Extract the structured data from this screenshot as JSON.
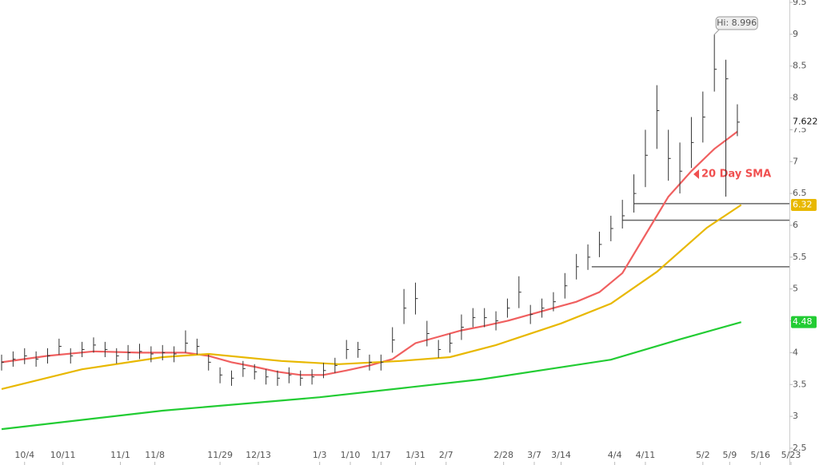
{
  "chart_data": {
    "type": "ohlc",
    "x": [
      0,
      3,
      6,
      9,
      12,
      15,
      18,
      21,
      24,
      27,
      30,
      33,
      36,
      39,
      42,
      45,
      48,
      51,
      54,
      57,
      60,
      63,
      66,
      69,
      72,
      75,
      78,
      81,
      84,
      87,
      90,
      93,
      96,
      99,
      102,
      105,
      108,
      111,
      114,
      117,
      120,
      123,
      126,
      129,
      132,
      135,
      138,
      141,
      144,
      147,
      150,
      153,
      156,
      159,
      162,
      165,
      168,
      171,
      174,
      177,
      180,
      183,
      186,
      189,
      192
    ],
    "high": [
      3.97,
      4.02,
      4.07,
      4.02,
      4.07,
      4.22,
      4.07,
      4.17,
      4.24,
      4.17,
      4.07,
      4.12,
      4.14,
      4.1,
      4.12,
      4.1,
      4.35,
      4.22,
      3.97,
      3.77,
      3.72,
      3.87,
      3.82,
      3.74,
      3.72,
      3.77,
      3.72,
      3.74,
      3.84,
      3.92,
      4.2,
      4.17,
      3.97,
      3.97,
      4.4,
      5.0,
      5.1,
      4.5,
      4.2,
      4.3,
      4.6,
      4.7,
      4.7,
      4.65,
      4.85,
      5.2,
      4.75,
      4.85,
      4.95,
      5.25,
      5.55,
      5.7,
      5.9,
      6.15,
      6.4,
      6.8,
      7.5,
      8.2,
      7.5,
      7.3,
      7.7,
      8.1,
      8.996,
      8.6,
      7.9
    ],
    "low": [
      3.72,
      3.78,
      3.82,
      3.78,
      3.83,
      3.97,
      3.83,
      3.93,
      4.0,
      3.93,
      3.83,
      3.88,
      3.9,
      3.85,
      3.88,
      3.85,
      4.0,
      3.97,
      3.72,
      3.52,
      3.48,
      3.62,
      3.58,
      3.5,
      3.48,
      3.52,
      3.48,
      3.5,
      3.6,
      3.68,
      3.9,
      3.92,
      3.72,
      3.72,
      4.0,
      4.45,
      4.6,
      4.1,
      3.92,
      4.0,
      4.2,
      4.4,
      4.4,
      4.35,
      4.55,
      4.7,
      4.45,
      4.55,
      4.65,
      4.85,
      5.15,
      5.3,
      5.5,
      5.75,
      5.95,
      6.2,
      6.6,
      7.2,
      6.7,
      6.5,
      6.9,
      7.3,
      8.1,
      6.45,
      7.4
    ],
    "close": [
      3.85,
      3.9,
      3.95,
      3.9,
      3.95,
      4.1,
      3.95,
      4.05,
      4.12,
      4.05,
      3.95,
      4.0,
      4.02,
      3.98,
      4.0,
      3.98,
      4.15,
      4.1,
      3.85,
      3.65,
      3.6,
      3.75,
      3.7,
      3.62,
      3.6,
      3.65,
      3.6,
      3.62,
      3.72,
      3.8,
      4.05,
      4.05,
      3.85,
      3.85,
      4.2,
      4.7,
      4.85,
      4.3,
      4.05,
      4.15,
      4.4,
      4.55,
      4.55,
      4.5,
      4.7,
      4.95,
      4.6,
      4.7,
      4.8,
      5.05,
      5.35,
      5.5,
      5.7,
      5.95,
      6.15,
      6.5,
      7.1,
      7.8,
      7.05,
      6.85,
      7.3,
      7.7,
      8.45,
      8.3,
      7.62
    ],
    "bar_color": "#333333",
    "overlays": [
      {
        "color": "#f06060",
        "x": [
          0,
          12,
          24,
          36,
          48,
          54,
          60,
          66,
          72,
          78,
          84,
          90,
          96,
          102,
          108,
          114,
          120,
          126,
          132,
          138,
          144,
          150,
          156,
          162,
          168,
          174,
          180,
          186,
          192
        ],
        "values": [
          3.85,
          3.95,
          4.02,
          4.0,
          4.0,
          3.95,
          3.85,
          3.78,
          3.7,
          3.65,
          3.65,
          3.72,
          3.8,
          3.9,
          4.15,
          4.25,
          4.35,
          4.42,
          4.5,
          4.6,
          4.7,
          4.8,
          4.95,
          5.25,
          5.85,
          6.45,
          6.85,
          7.2,
          7.47
        ]
      },
      {
        "color": "#e8b800",
        "x": [
          0,
          21,
          42,
          54,
          73,
          88,
          104,
          117,
          129,
          146,
          159,
          171,
          184,
          193
        ],
        "values": [
          3.43,
          3.74,
          3.93,
          3.98,
          3.87,
          3.82,
          3.87,
          3.93,
          4.12,
          4.46,
          4.77,
          5.27,
          5.96,
          6.32
        ],
        "last_label": {
          "value": 6.32,
          "label": "6.32"
        }
      },
      {
        "color": "#22cc33",
        "x": [
          0,
          42,
          83,
          125,
          159,
          177,
          193
        ],
        "values": [
          2.8,
          3.09,
          3.3,
          3.58,
          3.89,
          4.21,
          4.48
        ],
        "last_label": {
          "value": 4.48,
          "label": "4.48"
        }
      }
    ],
    "levels": [
      {
        "value": 6.34,
        "from": 165
      },
      {
        "value": 6.08,
        "from": 162
      },
      {
        "value": 5.35,
        "from": 154
      }
    ],
    "price_label": {
      "value": 7.622,
      "label": "7.622"
    },
    "hi_label": {
      "value": 8.996,
      "x": 186,
      "label": "Hi: 8.996"
    },
    "annotation": "20 Day SMA",
    "ylim": [
      2.5,
      9.5
    ],
    "yticks": [
      2.5,
      3,
      3.5,
      4,
      4.5,
      5,
      5.5,
      6,
      6.5,
      7,
      7.5,
      8,
      8.5,
      9,
      9.5
    ],
    "xlim": [
      0,
      206
    ],
    "xticks": [
      {
        "value": 6,
        "label": "10/4"
      },
      {
        "value": 16,
        "label": "10/11"
      },
      {
        "value": 31,
        "label": "11/1"
      },
      {
        "value": 40,
        "label": "11/8"
      },
      {
        "value": 57,
        "label": "11/29"
      },
      {
        "value": 67,
        "label": "12/13"
      },
      {
        "value": 83,
        "label": "1/3"
      },
      {
        "value": 91,
        "label": "1/10"
      },
      {
        "value": 99,
        "label": "1/17"
      },
      {
        "value": 108,
        "label": "1/31"
      },
      {
        "value": 116,
        "label": "2/7"
      },
      {
        "value": 131,
        "label": "2/28"
      },
      {
        "value": 139,
        "label": "3/7"
      },
      {
        "value": 146,
        "label": "3/14"
      },
      {
        "value": 160,
        "label": "4/4"
      },
      {
        "value": 168,
        "label": "4/11"
      },
      {
        "value": 183,
        "label": "5/2"
      },
      {
        "value": 190,
        "label": "5/9"
      },
      {
        "value": 198,
        "label": "5/16"
      },
      {
        "value": 206,
        "label": "5/23"
      }
    ]
  }
}
